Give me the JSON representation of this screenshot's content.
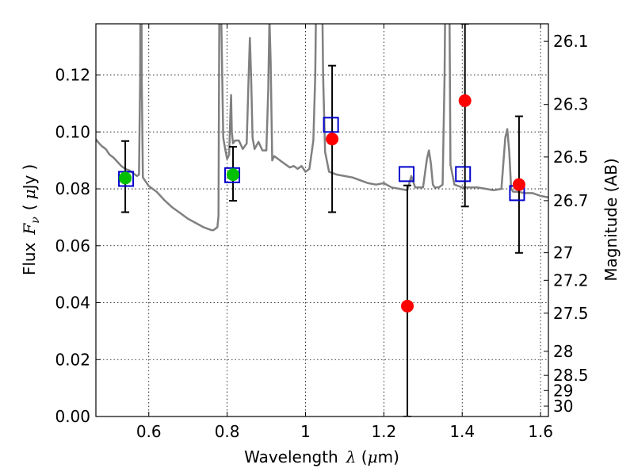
{
  "chart_data": {
    "type": "scatter",
    "xlabel": "Wavelength",
    "xlabel_symbol": "λ",
    "xlabel_unit_open": " (",
    "xlabel_unit_mu": "μ",
    "xlabel_unit_rest": "m)",
    "ylabel": "Flux",
    "ylabel_symbol_F": "F",
    "ylabel_symbol_sub": "ν",
    "ylabel_unit_open": "(",
    "ylabel_unit_mu": "μ",
    "ylabel_unit_rest": "Jy",
    "ylabel_unit_close": ")",
    "y2label": "Magnitude (AB)",
    "xlim": [
      0.465,
      1.62
    ],
    "ylim": [
      0.0,
      0.138
    ],
    "xticks": [
      {
        "value": 0.6,
        "label": "0.6"
      },
      {
        "value": 0.8,
        "label": "0.8"
      },
      {
        "value": 1.0,
        "label": "1"
      },
      {
        "value": 1.2,
        "label": "1.2"
      },
      {
        "value": 1.4,
        "label": "1.4"
      },
      {
        "value": 1.6,
        "label": "1.6"
      }
    ],
    "yticks": [
      {
        "value": 0.0,
        "label": "0.00"
      },
      {
        "value": 0.02,
        "label": "0.02"
      },
      {
        "value": 0.04,
        "label": "0.04"
      },
      {
        "value": 0.06,
        "label": "0.06"
      },
      {
        "value": 0.08,
        "label": "0.08"
      },
      {
        "value": 0.1,
        "label": "0.10"
      },
      {
        "value": 0.12,
        "label": "0.12"
      }
    ],
    "y2ticks": [
      {
        "mag": 26.1,
        "label": "26.1"
      },
      {
        "mag": 26.3,
        "label": "26.3"
      },
      {
        "mag": 26.5,
        "label": "26.5"
      },
      {
        "mag": 26.7,
        "label": "26.7"
      },
      {
        "mag": 27.0,
        "label": "27"
      },
      {
        "mag": 27.2,
        "label": "27.2"
      },
      {
        "mag": 27.5,
        "label": "27.5"
      },
      {
        "mag": 28.0,
        "label": "28"
      },
      {
        "mag": 28.5,
        "label": "28.5"
      },
      {
        "mag": 29.0,
        "label": "29"
      },
      {
        "mag": 30.0,
        "label": "30"
      }
    ],
    "grid": true,
    "colors": {
      "spectrum": "#808080",
      "observed": "#ff0000",
      "observed_alt": "#00c000",
      "model": "#0000cc",
      "errorbar": "#000000"
    },
    "series": [
      {
        "name": "model spectrum",
        "kind": "line",
        "x": [
          0.465,
          0.47,
          0.48,
          0.49,
          0.5,
          0.51,
          0.52,
          0.53,
          0.54,
          0.55,
          0.56,
          0.57,
          0.575,
          0.578,
          0.58,
          0.582,
          0.585,
          0.59,
          0.6,
          0.62,
          0.64,
          0.66,
          0.68,
          0.7,
          0.72,
          0.74,
          0.75,
          0.76,
          0.765,
          0.77,
          0.775,
          0.778,
          0.78,
          0.782,
          0.785,
          0.79,
          0.795,
          0.8,
          0.805,
          0.808,
          0.81,
          0.812,
          0.815,
          0.82,
          0.83,
          0.84,
          0.85,
          0.855,
          0.858,
          0.861,
          0.865,
          0.87,
          0.88,
          0.89,
          0.9,
          0.905,
          0.908,
          0.911,
          0.915,
          0.92,
          0.93,
          0.94,
          0.95,
          0.96,
          0.97,
          0.98,
          0.99,
          1.0,
          1.01,
          1.02,
          1.025,
          1.03,
          1.035,
          1.04,
          1.045,
          1.05,
          1.06,
          1.07,
          1.08,
          1.1,
          1.12,
          1.14,
          1.16,
          1.18,
          1.2,
          1.22,
          1.24,
          1.26,
          1.27,
          1.28,
          1.3,
          1.31,
          1.315,
          1.32,
          1.325,
          1.33,
          1.34,
          1.35,
          1.355,
          1.36,
          1.363,
          1.365,
          1.37,
          1.38,
          1.39,
          1.4,
          1.42,
          1.44,
          1.46,
          1.48,
          1.5,
          1.51,
          1.515,
          1.52,
          1.525,
          1.53,
          1.54,
          1.56,
          1.58,
          1.6,
          1.62
        ],
        "y": [
          0.0975,
          0.0965,
          0.095,
          0.094,
          0.092,
          0.091,
          0.0895,
          0.088,
          0.087,
          0.0865,
          0.0855,
          0.0845,
          0.085,
          0.12,
          0.22,
          0.12,
          0.084,
          0.083,
          0.081,
          0.079,
          0.076,
          0.0735,
          0.0715,
          0.0695,
          0.068,
          0.0665,
          0.066,
          0.0655,
          0.0655,
          0.066,
          0.0665,
          0.0705,
          0.14,
          0.2,
          0.14,
          0.098,
          0.094,
          0.0905,
          0.092,
          0.105,
          0.113,
          0.1,
          0.096,
          0.097,
          0.097,
          0.094,
          0.096,
          0.12,
          0.133,
          0.12,
          0.098,
          0.094,
          0.0965,
          0.0935,
          0.0935,
          0.115,
          0.14,
          0.125,
          0.09,
          0.0915,
          0.0905,
          0.0895,
          0.0885,
          0.0875,
          0.088,
          0.087,
          0.088,
          0.086,
          0.087,
          0.097,
          0.12,
          0.18,
          0.24,
          0.18,
          0.12,
          0.093,
          0.086,
          0.0855,
          0.085,
          0.0845,
          0.084,
          0.083,
          0.082,
          0.0815,
          0.082,
          0.0805,
          0.08,
          0.0795,
          0.0845,
          0.0805,
          0.0805,
          0.0905,
          0.0935,
          0.089,
          0.0815,
          0.0805,
          0.0805,
          0.0815,
          0.12,
          0.2,
          0.24,
          0.2,
          0.0885,
          0.0815,
          0.081,
          0.0805,
          0.0805,
          0.0805,
          0.08,
          0.0795,
          0.08,
          0.098,
          0.101,
          0.093,
          0.08,
          0.079,
          0.079,
          0.0785,
          0.0785,
          0.0775,
          0.077
        ]
      },
      {
        "name": "observed photometry",
        "kind": "points",
        "marker": "circle",
        "points": [
          {
            "x": 0.54,
            "y": 0.0838,
            "err_lo": 0.0718,
            "err_hi": 0.0968,
            "color": "#00c000"
          },
          {
            "x": 0.815,
            "y": 0.085,
            "err_lo": 0.0758,
            "err_hi": 0.0948,
            "color": "#00c000"
          },
          {
            "x": 1.068,
            "y": 0.0975,
            "err_lo": 0.0718,
            "err_hi": 0.1233,
            "color": "#ff0000"
          },
          {
            "x": 1.26,
            "y": 0.0388,
            "err_lo": 0.0,
            "err_hi": 0.0812,
            "color": "#ff0000"
          },
          {
            "x": 1.407,
            "y": 0.111,
            "err_lo": 0.0738,
            "err_hi": 0.138,
            "color": "#ff0000"
          },
          {
            "x": 1.545,
            "y": 0.0815,
            "err_lo": 0.0575,
            "err_hi": 0.1055,
            "color": "#ff0000"
          }
        ]
      },
      {
        "name": "model photometry",
        "kind": "points",
        "marker": "open-square",
        "points": [
          {
            "x": 0.542,
            "y": 0.0835
          },
          {
            "x": 0.813,
            "y": 0.0848
          },
          {
            "x": 1.065,
            "y": 0.1025
          },
          {
            "x": 1.258,
            "y": 0.0852
          },
          {
            "x": 1.402,
            "y": 0.0852
          },
          {
            "x": 1.54,
            "y": 0.0785
          }
        ]
      }
    ]
  }
}
